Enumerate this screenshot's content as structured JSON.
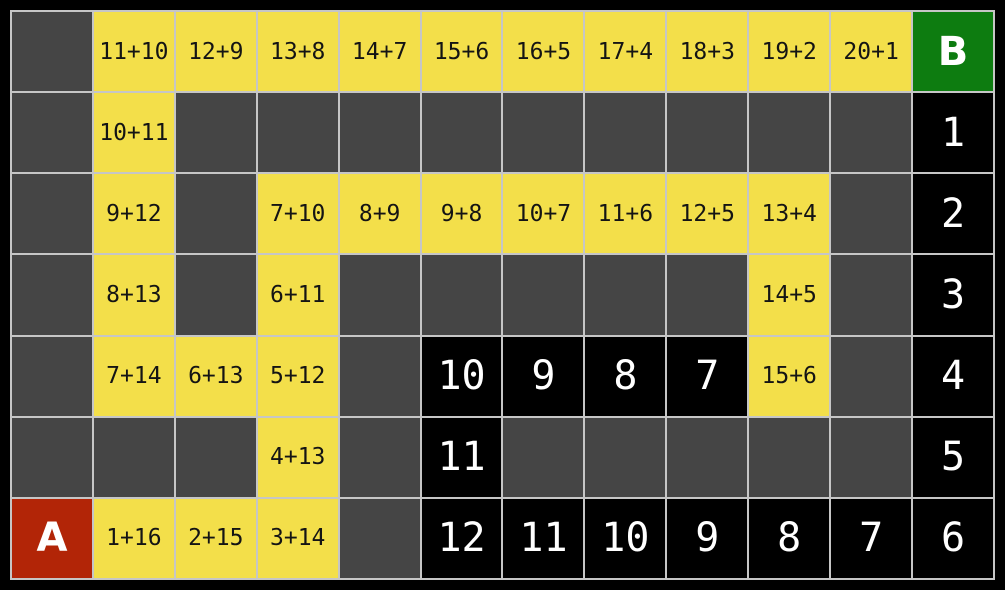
{
  "board": {
    "columns": 12,
    "rows": 7,
    "start_label": "A",
    "goal_label": "B",
    "colors": {
      "background": "#000000",
      "wall": "#454545",
      "expression_bg": "#f3df4a",
      "expression_text": "#141414",
      "number_bg": "#000000",
      "number_text": "#ffffff",
      "start_bg": "#b22507",
      "goal_bg": "#0d7c10",
      "gridline": "#c6c6c6"
    },
    "grid": [
      [
        "",
        "e|11+10",
        "e|12+9",
        "e|13+8",
        "e|14+7",
        "e|15+6",
        "e|16+5",
        "e|17+4",
        "e|18+3",
        "e|19+2",
        "e|20+1",
        "g|B"
      ],
      [
        "",
        "e|10+11",
        "",
        "",
        "",
        "",
        "",
        "",
        "",
        "",
        "",
        "n|1"
      ],
      [
        "",
        "e|9+12",
        "",
        "e|7+10",
        "e|8+9",
        "e|9+8",
        "e|10+7",
        "e|11+6",
        "e|12+5",
        "e|13+4",
        "",
        "n|2"
      ],
      [
        "",
        "e|8+13",
        "",
        "e|6+11",
        "",
        "",
        "",
        "",
        "",
        "e|14+5",
        "",
        "n|3"
      ],
      [
        "",
        "e|7+14",
        "e|6+13",
        "e|5+12",
        "",
        "n|10",
        "n|9",
        "n|8",
        "n|7",
        "e|15+6",
        "",
        "n|4"
      ],
      [
        "",
        "",
        "",
        "e|4+13",
        "",
        "n|11",
        "",
        "",
        "",
        "",
        "",
        "n|5"
      ],
      [
        "s|A",
        "e|1+16",
        "e|2+15",
        "e|3+14",
        "",
        "n|12",
        "n|11",
        "n|10",
        "n|9",
        "n|8",
        "n|7",
        "n|6"
      ]
    ]
  }
}
